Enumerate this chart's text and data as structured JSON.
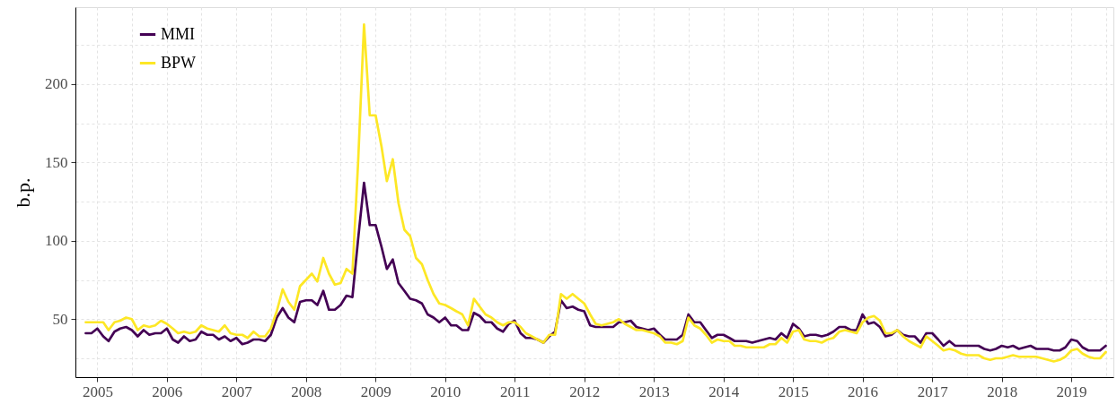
{
  "chart_data": {
    "type": "line",
    "ylabel": "b.p.",
    "x": [
      "2004-11",
      "2004-12",
      "2005-01",
      "2005-02",
      "2005-03",
      "2005-04",
      "2005-05",
      "2005-06",
      "2005-07",
      "2005-08",
      "2005-09",
      "2005-10",
      "2005-11",
      "2005-12",
      "2006-01",
      "2006-02",
      "2006-03",
      "2006-04",
      "2006-05",
      "2006-06",
      "2006-07",
      "2006-08",
      "2006-09",
      "2006-10",
      "2006-11",
      "2006-12",
      "2007-01",
      "2007-02",
      "2007-03",
      "2007-04",
      "2007-05",
      "2007-06",
      "2007-07",
      "2007-08",
      "2007-09",
      "2007-10",
      "2007-11",
      "2007-12",
      "2008-01",
      "2008-02",
      "2008-03",
      "2008-04",
      "2008-05",
      "2008-06",
      "2008-07",
      "2008-08",
      "2008-09",
      "2008-10",
      "2008-11",
      "2008-12",
      "2009-01",
      "2009-02",
      "2009-03",
      "2009-04",
      "2009-05",
      "2009-06",
      "2009-07",
      "2009-08",
      "2009-09",
      "2009-10",
      "2009-11",
      "2009-12",
      "2010-01",
      "2010-02",
      "2010-03",
      "2010-04",
      "2010-05",
      "2010-06",
      "2010-07",
      "2010-08",
      "2010-09",
      "2010-10",
      "2010-11",
      "2010-12",
      "2011-01",
      "2011-02",
      "2011-03",
      "2011-04",
      "2011-05",
      "2011-06",
      "2011-07",
      "2011-08",
      "2011-09",
      "2011-10",
      "2011-11",
      "2011-12",
      "2012-01",
      "2012-02",
      "2012-03",
      "2012-04",
      "2012-05",
      "2012-06",
      "2012-07",
      "2012-08",
      "2012-09",
      "2012-10",
      "2012-11",
      "2012-12",
      "2013-01",
      "2013-02",
      "2013-03",
      "2013-04",
      "2013-05",
      "2013-06",
      "2013-07",
      "2013-08",
      "2013-09",
      "2013-10",
      "2013-11",
      "2013-12",
      "2014-01",
      "2014-02",
      "2014-03",
      "2014-04",
      "2014-05",
      "2014-06",
      "2014-07",
      "2014-08",
      "2014-09",
      "2014-10",
      "2014-11",
      "2014-12",
      "2015-01",
      "2015-02",
      "2015-03",
      "2015-04",
      "2015-05",
      "2015-06",
      "2015-07",
      "2015-08",
      "2015-09",
      "2015-10",
      "2015-11",
      "2015-12",
      "2016-01",
      "2016-02",
      "2016-03",
      "2016-04",
      "2016-05",
      "2016-06",
      "2016-07",
      "2016-08",
      "2016-09",
      "2016-10",
      "2016-11",
      "2016-12",
      "2017-01",
      "2017-02",
      "2017-03",
      "2017-04",
      "2017-05",
      "2017-06",
      "2017-07",
      "2017-08",
      "2017-09",
      "2017-10",
      "2017-11",
      "2017-12",
      "2018-01",
      "2018-02",
      "2018-03",
      "2018-04",
      "2018-05",
      "2018-06",
      "2018-07",
      "2018-08",
      "2018-09",
      "2018-10",
      "2018-11",
      "2018-12",
      "2019-01",
      "2019-02",
      "2019-03",
      "2019-04",
      "2019-05",
      "2019-06",
      "2019-07"
    ],
    "series": [
      {
        "name": "MMI",
        "color": "#440154",
        "values": [
          41,
          41,
          44,
          39,
          36,
          42,
          44,
          45,
          43,
          39,
          43,
          40,
          41,
          41,
          44,
          37,
          35,
          39,
          36,
          37,
          42,
          40,
          40,
          37,
          39,
          36,
          38,
          34,
          35,
          37,
          37,
          36,
          40,
          51,
          57,
          51,
          48,
          61,
          62,
          62,
          59,
          68,
          56,
          56,
          59,
          65,
          64,
          101,
          137,
          110,
          110,
          96,
          82,
          88,
          73,
          68,
          63,
          62,
          60,
          53,
          51,
          48,
          51,
          46,
          46,
          43,
          43,
          54,
          52,
          48,
          48,
          44,
          42,
          47,
          49,
          41,
          38,
          38,
          37,
          35,
          39,
          42,
          62,
          57,
          58,
          56,
          55,
          46,
          45,
          45,
          45,
          45,
          48,
          48,
          49,
          45,
          44,
          43,
          44,
          40,
          37,
          37,
          37,
          40,
          53,
          48,
          48,
          43,
          38,
          40,
          40,
          38,
          36,
          36,
          36,
          35,
          36,
          37,
          38,
          37,
          41,
          38,
          47,
          44,
          39,
          40,
          40,
          39,
          40,
          42,
          45,
          45,
          43,
          43,
          53,
          47,
          48,
          45,
          39,
          40,
          43,
          40,
          39,
          39,
          35,
          41,
          41,
          37,
          33,
          36,
          33,
          33,
          33,
          33,
          33,
          31,
          30,
          31,
          33,
          32,
          33,
          31,
          32,
          33,
          31,
          31,
          31,
          30,
          30,
          32,
          37,
          36,
          32,
          30,
          30,
          30,
          33
        ]
      },
      {
        "name": "BPW",
        "color": "#fde725",
        "values": [
          48,
          48,
          48,
          48,
          43,
          48,
          49,
          51,
          50,
          43,
          46,
          45,
          46,
          49,
          47,
          44,
          41,
          42,
          41,
          42,
          46,
          44,
          43,
          42,
          46,
          41,
          40,
          40,
          38,
          42,
          39,
          39,
          44,
          55,
          69,
          61,
          56,
          71,
          75,
          79,
          74,
          89,
          79,
          72,
          73,
          82,
          79,
          150,
          238,
          180,
          180,
          160,
          138,
          152,
          124,
          107,
          103,
          89,
          85,
          75,
          66,
          60,
          59,
          57,
          55,
          53,
          46,
          63,
          58,
          53,
          51,
          48,
          46,
          48,
          48,
          45,
          41,
          39,
          37,
          35,
          40,
          40,
          66,
          63,
          66,
          63,
          60,
          53,
          47,
          46,
          47,
          48,
          50,
          47,
          45,
          43,
          43,
          42,
          41,
          39,
          35,
          35,
          34,
          36,
          51,
          46,
          44,
          40,
          35,
          37,
          36,
          36,
          33,
          33,
          32,
          32,
          32,
          32,
          34,
          34,
          38,
          35,
          42,
          43,
          37,
          36,
          36,
          35,
          37,
          38,
          42,
          43,
          42,
          41,
          48,
          51,
          52,
          49,
          41,
          41,
          43,
          39,
          36,
          34,
          32,
          39,
          36,
          33,
          30,
          31,
          30,
          28,
          27,
          27,
          27,
          25,
          24,
          25,
          25,
          26,
          27,
          26,
          26,
          26,
          26,
          25,
          24,
          23,
          24,
          26,
          30,
          31,
          28,
          26,
          25,
          25,
          29
        ]
      }
    ],
    "xlim": [
      "2004-09-08",
      "2019-08-10"
    ],
    "ylim": [
      13,
      249
    ],
    "xticks": [
      "2005",
      {
        "value": "2005-07",
        "label": null
      },
      "2006",
      {
        "value": "2006-07",
        "label": null
      },
      "2007",
      {
        "value": "2007-07",
        "label": null
      },
      "2008",
      {
        "value": "2008-07",
        "label": null
      },
      "2009",
      {
        "value": "2009-07",
        "label": null
      },
      "2010",
      {
        "value": "2010-07",
        "label": null
      },
      "2011",
      {
        "value": "2011-07",
        "label": null
      },
      "2012",
      {
        "value": "2012-07",
        "label": null
      },
      "2013",
      {
        "value": "2013-07",
        "label": null
      },
      "2014",
      {
        "value": "2014-07",
        "label": null
      },
      "2015",
      {
        "value": "2015-07",
        "label": null
      },
      "2016",
      {
        "value": "2016-07",
        "label": null
      },
      "2017",
      {
        "value": "2017-07",
        "label": null
      },
      "2018",
      {
        "value": "2018-07",
        "label": null
      },
      "2019",
      {
        "value": "2019-07",
        "label": null
      }
    ],
    "yticks": [
      {
        "value": 25,
        "label": null
      },
      50,
      {
        "value": 75,
        "label": null
      },
      100,
      {
        "value": 125,
        "label": null
      },
      150,
      {
        "value": 175,
        "label": null
      },
      200,
      {
        "value": 225,
        "label": null
      }
    ],
    "grid": true,
    "legend": "top left",
    "line_style": "solid"
  }
}
